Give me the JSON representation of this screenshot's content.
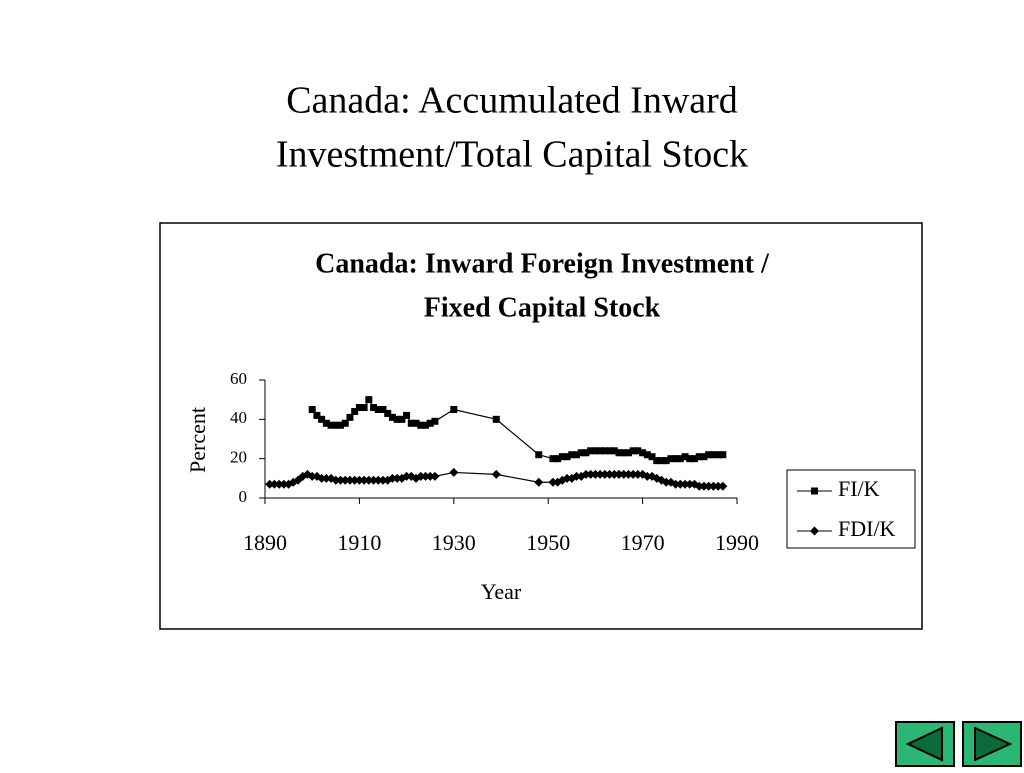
{
  "slide_title": [
    "Canada: Accumulated Inward",
    "Investment/Total Capital Stock"
  ],
  "chart_data": {
    "type": "line",
    "title": [
      "Canada: Inward Foreign Investment /",
      "Fixed Capital Stock"
    ],
    "x_label": "Year",
    "y_label": "Percent",
    "xlim": [
      1890,
      1990
    ],
    "xticks": [
      1890,
      1910,
      1930,
      1950,
      1970,
      1990
    ],
    "ylim": [
      0,
      60
    ],
    "yticks": [
      0,
      20,
      40,
      60
    ],
    "legend": "right",
    "series": [
      {
        "name": "FI/K",
        "color": "#000000",
        "marker": "square",
        "x": [
          1900,
          1901,
          1902,
          1903,
          1904,
          1905,
          1906,
          1907,
          1908,
          1909,
          1910,
          1911,
          1912,
          1913,
          1914,
          1915,
          1916,
          1917,
          1918,
          1919,
          1920,
          1921,
          1922,
          1923,
          1924,
          1925,
          1926,
          1930,
          1939,
          1948,
          1951,
          1952,
          1953,
          1954,
          1955,
          1956,
          1957,
          1958,
          1959,
          1960,
          1961,
          1962,
          1963,
          1964,
          1965,
          1966,
          1967,
          1968,
          1969,
          1970,
          1971,
          1972,
          1973,
          1974,
          1975,
          1976,
          1977,
          1978,
          1979,
          1980,
          1981,
          1982,
          1983,
          1984,
          1985,
          1986,
          1987
        ],
        "values": [
          45,
          42,
          40,
          38,
          37,
          37,
          37,
          38,
          41,
          44,
          46,
          46,
          50,
          46,
          45,
          45,
          43,
          41,
          40,
          40,
          42,
          38,
          38,
          37,
          37,
          38,
          39,
          45,
          40,
          22,
          20,
          20,
          21,
          21,
          22,
          22,
          23,
          23,
          24,
          24,
          24,
          24,
          24,
          24,
          23,
          23,
          23,
          24,
          24,
          23,
          22,
          21,
          19,
          19,
          19,
          20,
          20,
          20,
          21,
          20,
          20,
          21,
          21,
          22,
          22,
          22,
          22
        ]
      },
      {
        "name": "FDI/K",
        "color": "#000000",
        "marker": "diamond",
        "x": [
          1891,
          1892,
          1893,
          1894,
          1895,
          1896,
          1897,
          1898,
          1899,
          1900,
          1901,
          1902,
          1903,
          1904,
          1905,
          1906,
          1907,
          1908,
          1909,
          1910,
          1911,
          1912,
          1913,
          1914,
          1915,
          1916,
          1917,
          1918,
          1919,
          1920,
          1921,
          1922,
          1923,
          1924,
          1925,
          1926,
          1930,
          1939,
          1948,
          1951,
          1952,
          1953,
          1954,
          1955,
          1956,
          1957,
          1958,
          1959,
          1960,
          1961,
          1962,
          1963,
          1964,
          1965,
          1966,
          1967,
          1968,
          1969,
          1970,
          1971,
          1972,
          1973,
          1974,
          1975,
          1976,
          1977,
          1978,
          1979,
          1980,
          1981,
          1982,
          1983,
          1984,
          1985,
          1986,
          1987
        ],
        "values": [
          7,
          7,
          7,
          7,
          7,
          8,
          9,
          11,
          12,
          11,
          11,
          10,
          10,
          10,
          9,
          9,
          9,
          9,
          9,
          9,
          9,
          9,
          9,
          9,
          9,
          9,
          10,
          10,
          10,
          11,
          11,
          10,
          11,
          11,
          11,
          11,
          13,
          12,
          8,
          8,
          8,
          9,
          10,
          10,
          11,
          11,
          12,
          12,
          12,
          12,
          12,
          12,
          12,
          12,
          12,
          12,
          12,
          12,
          12,
          11,
          11,
          10,
          9,
          8,
          8,
          7,
          7,
          7,
          7,
          7,
          6,
          6,
          6,
          6,
          6,
          6
        ]
      }
    ]
  }
}
